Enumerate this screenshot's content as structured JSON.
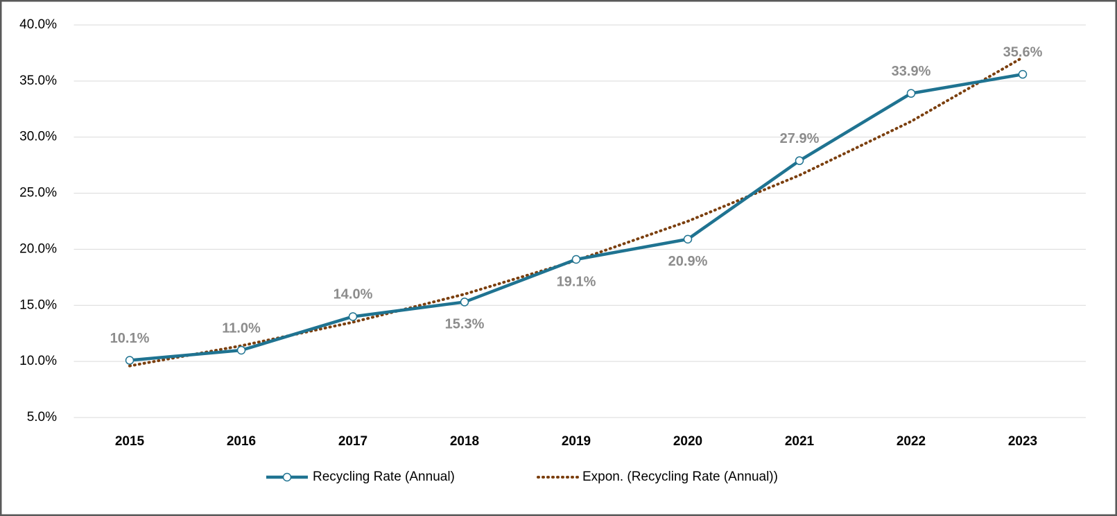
{
  "chart_data": {
    "type": "line",
    "categories": [
      "2015",
      "2016",
      "2017",
      "2018",
      "2019",
      "2020",
      "2021",
      "2022",
      "2023"
    ],
    "series": [
      {
        "name": "Recycling Rate (Annual)",
        "color": "#1f7391",
        "values": [
          10.1,
          11.0,
          14.0,
          15.3,
          19.1,
          20.9,
          27.9,
          33.9,
          35.6
        ],
        "value_labels": [
          "10.1%",
          "11.0%",
          "14.0%",
          "15.3%",
          "19.1%",
          "20.9%",
          "27.9%",
          "33.9%",
          "35.6%"
        ]
      },
      {
        "name": "Expon. (Recycling Rate (Annual))",
        "color": "#7b3f0e",
        "values": [
          9.6,
          11.4,
          13.5,
          16.0,
          19.0,
          22.5,
          26.6,
          31.4,
          37.1
        ]
      }
    ],
    "ylim": [
      5,
      40
    ],
    "yticks": [
      {
        "value": 5,
        "label": "5.0%"
      },
      {
        "value": 10,
        "label": "10.0%"
      },
      {
        "value": 15,
        "label": "15.0%"
      },
      {
        "value": 20,
        "label": "20.0%"
      },
      {
        "value": 25,
        "label": "25.0%"
      },
      {
        "value": 30,
        "label": "30.0%"
      },
      {
        "value": 35,
        "label": "35.0%"
      },
      {
        "value": 40,
        "label": "40.0%"
      }
    ],
    "grid": true,
    "legend": "bottom"
  }
}
